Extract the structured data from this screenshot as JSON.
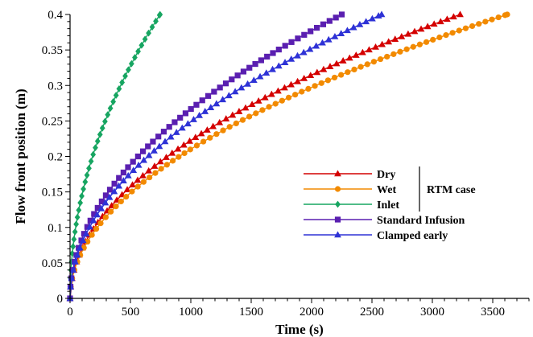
{
  "chart_data": {
    "type": "line",
    "title": "",
    "xlabel": "Time (s)",
    "ylabel": "Flow front position (m)",
    "xlim": [
      0,
      3800
    ],
    "ylim": [
      0,
      0.4
    ],
    "x_ticks": [
      0,
      500,
      1000,
      1500,
      2000,
      2500,
      3000,
      3500
    ],
    "y_ticks": [
      0,
      0.05,
      0.1,
      0.15,
      0.2,
      0.25,
      0.3,
      0.35,
      0.4
    ],
    "x_tick_labels": [
      "0",
      "500",
      "1000",
      "1500",
      "2000",
      "2500",
      "3000",
      "3500"
    ],
    "y_tick_labels": [
      "0",
      "0.05",
      "0.1",
      "0.15",
      "0.2",
      "0.25",
      "0.3",
      "0.35",
      "0.4"
    ],
    "grid": false,
    "legend_position": "right",
    "legend_group_label": "RTM case",
    "series": [
      {
        "name": "Dry",
        "color": "#d40000",
        "marker": "triangle",
        "t_end": 3230
      },
      {
        "name": "Wet",
        "color": "#f28a00",
        "marker": "circle",
        "t_end": 3620
      },
      {
        "name": "Inlet",
        "color": "#17a561",
        "marker": "diamond",
        "t_end": 745
      },
      {
        "name": "Standard Infusion",
        "color": "#5a1fb0",
        "marker": "square",
        "t_end": 2250
      },
      {
        "name": "Clamped early",
        "color": "#2e32d6",
        "marker": "triangle",
        "t_end": 2580
      }
    ]
  }
}
